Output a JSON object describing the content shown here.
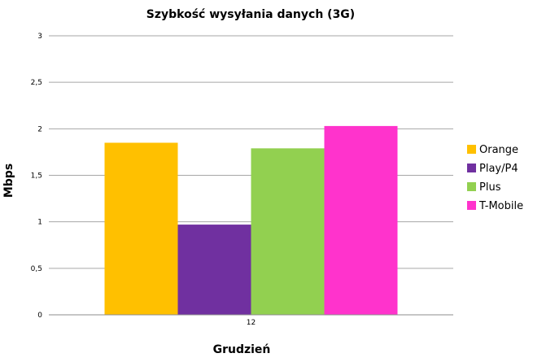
{
  "chart_data": {
    "type": "bar",
    "title": "Szybkość wysyłania danych (3G)",
    "xlabel": "Grudzień",
    "ylabel": "Mbps",
    "categories": [
      "12"
    ],
    "ylim": [
      0,
      3
    ],
    "yticks": [
      "0",
      "0,5",
      "1",
      "1,5",
      "2",
      "2,5",
      "3"
    ],
    "grid": true,
    "legend_position": "right",
    "series": [
      {
        "name": "Orange",
        "values": [
          1.85
        ],
        "color": "#ffc000"
      },
      {
        "name": "Play/P4",
        "values": [
          0.97
        ],
        "color": "#7030a0"
      },
      {
        "name": "Plus",
        "values": [
          1.79
        ],
        "color": "#92d050"
      },
      {
        "name": "T-Mobile",
        "values": [
          2.03
        ],
        "color": "#ff33cc"
      }
    ]
  }
}
